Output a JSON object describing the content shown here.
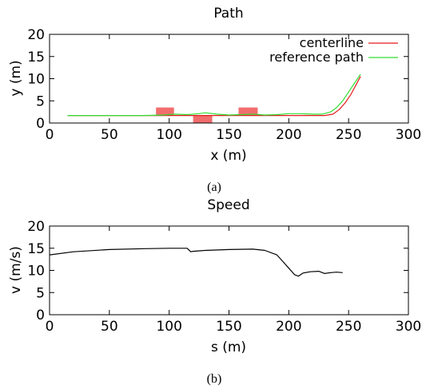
{
  "chart_data": [
    {
      "type": "line",
      "title": "Path",
      "xlabel": "x (m)",
      "ylabel": "y (m)",
      "xlim": [
        0,
        300
      ],
      "ylim": [
        0,
        20
      ],
      "xticks": [
        "0",
        "50",
        "100",
        "150",
        "200",
        "250",
        "300"
      ],
      "yticks": [
        "0",
        "5",
        "10",
        "15",
        "20"
      ],
      "caption": "(a)",
      "legend_position": "top-right",
      "grid": false,
      "series": [
        {
          "name": "centerline",
          "color": "#e41a1c",
          "x": [
            15,
            50,
            100,
            150,
            200,
            230,
            237,
            242,
            247,
            252,
            256,
            260
          ],
          "y": [
            1.7,
            1.7,
            1.7,
            1.7,
            1.7,
            1.7,
            2.0,
            3.0,
            4.5,
            6.5,
            8.5,
            10.5
          ]
        },
        {
          "name": "reference path",
          "color": "#33dd33",
          "x": [
            15,
            50,
            80,
            95,
            105,
            115,
            125,
            130,
            140,
            150,
            160,
            170,
            180,
            190,
            200,
            210,
            220,
            228,
            235,
            240,
            245,
            250,
            255,
            260
          ],
          "y": [
            1.7,
            1.7,
            1.7,
            1.8,
            2.0,
            1.9,
            2.1,
            2.3,
            2.0,
            1.8,
            1.9,
            2.0,
            1.8,
            1.9,
            2.1,
            2.1,
            2.0,
            2.0,
            2.5,
            3.5,
            5.0,
            7.0,
            9.0,
            11.0
          ]
        }
      ],
      "obstacles": [
        {
          "x0": 89,
          "x1": 104,
          "y0": 1.7,
          "y1": 3.5,
          "color": "#f26d6d"
        },
        {
          "x0": 120,
          "x1": 136,
          "y0": 0,
          "y1": 1.7,
          "color": "#f26d6d"
        },
        {
          "x0": 158,
          "x1": 174,
          "y0": 1.7,
          "y1": 3.5,
          "color": "#f26d6d"
        }
      ]
    },
    {
      "type": "line",
      "title": "Speed",
      "xlabel": "s (m)",
      "ylabel": "v (m/s)",
      "xlim": [
        0,
        300
      ],
      "ylim": [
        0,
        20
      ],
      "xticks": [
        "0",
        "50",
        "100",
        "150",
        "200",
        "250",
        "300"
      ],
      "yticks": [
        "0",
        "5",
        "10",
        "15",
        "20"
      ],
      "caption": "(b)",
      "grid": false,
      "series": [
        {
          "color": "#000000",
          "x": [
            0,
            20,
            50,
            80,
            100,
            115,
            118,
            120,
            130,
            150,
            170,
            180,
            190,
            195,
            200,
            205,
            208,
            212,
            218,
            225,
            230,
            235,
            240,
            245
          ],
          "y": [
            13.5,
            14.2,
            14.7,
            14.9,
            15.0,
            15.0,
            14.2,
            14.3,
            14.5,
            14.7,
            14.8,
            14.5,
            13.5,
            12.0,
            10.5,
            9.0,
            8.7,
            9.4,
            9.7,
            9.8,
            9.3,
            9.5,
            9.6,
            9.5
          ]
        }
      ]
    }
  ]
}
